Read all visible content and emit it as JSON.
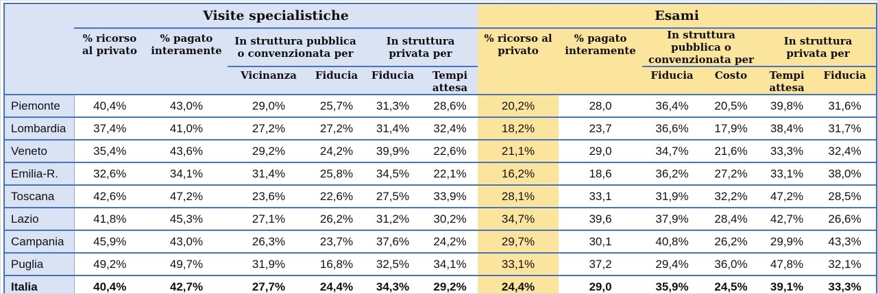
{
  "table": {
    "corner_label": "",
    "sections": [
      {
        "title": "Visite specialistiche",
        "groups": [
          {
            "label": "% ricorso al privato",
            "sub": []
          },
          {
            "label": "% pagato interamente",
            "sub": []
          },
          {
            "label": "In struttura pubblica o convenzionata per",
            "sub": [
              "Vicinanza",
              "Fiducia"
            ]
          },
          {
            "label": "In struttura privata per",
            "sub": [
              "Fiducia",
              "Tempi attesa"
            ]
          }
        ]
      },
      {
        "title": "Esami",
        "groups": [
          {
            "label": "% ricorso al privato",
            "sub": []
          },
          {
            "label": "% pagato interamente",
            "sub": []
          },
          {
            "label": "In struttura pubblica o convenzionata per",
            "sub": [
              "Fiducia",
              "Costo"
            ]
          },
          {
            "label": "In struttura privata per",
            "sub": [
              "Tempi attesa",
              "Fiducia"
            ]
          }
        ]
      }
    ],
    "rows": [
      {
        "region": "Piemonte",
        "bold": false,
        "visite": [
          "40,4%",
          "43,0%",
          "29,0%",
          "25,7%",
          "31,3%",
          "28,6%"
        ],
        "esami": [
          "20,2%",
          "28,0",
          "36,4%",
          "20,5%",
          "39,8%",
          "31,6%"
        ]
      },
      {
        "region": "Lombardia",
        "bold": false,
        "visite": [
          "37,4%",
          "41,0%",
          "27,2%",
          "27,2%",
          "31,4%",
          "32,4%"
        ],
        "esami": [
          "18,2%",
          "23,7",
          "36,6%",
          "17,9%",
          "38,4%",
          "31,7%"
        ]
      },
      {
        "region": "Veneto",
        "bold": false,
        "visite": [
          "35,4%",
          "43,6%",
          "29,2%",
          "24,2%",
          "39,9%",
          "22,6%"
        ],
        "esami": [
          "21,1%",
          "29,0",
          "34,7%",
          "21,6%",
          "33,3%",
          "32,4%"
        ]
      },
      {
        "region": "Emilia-R.",
        "bold": false,
        "visite": [
          "32,6%",
          "34,1%",
          "31,4%",
          "25,8%",
          "34,5%",
          "22,1%"
        ],
        "esami": [
          "16,2%",
          "18,6",
          "36,2%",
          "27,2%",
          "33,1%",
          "38,0%"
        ]
      },
      {
        "region": "Toscana",
        "bold": false,
        "visite": [
          "42,6%",
          "47,2%",
          "23,6%",
          "22,6%",
          "27,5%",
          "33,9%"
        ],
        "esami": [
          "28,1%",
          "33,1",
          "31,9%",
          "32,2%",
          "47,2%",
          "28,5%"
        ]
      },
      {
        "region": "Lazio",
        "bold": false,
        "visite": [
          "41,8%",
          "45,3%",
          "27,1%",
          "26,2%",
          "31,2%",
          "30,2%"
        ],
        "esami": [
          "34,7%",
          "39,6",
          "37,9%",
          "28,4%",
          "42,7%",
          "26,6%"
        ]
      },
      {
        "region": "Campania",
        "bold": false,
        "visite": [
          "45,9%",
          "43,0%",
          "26,3%",
          "23,7%",
          "37,6%",
          "24,2%"
        ],
        "esami": [
          "29,7%",
          "30,1",
          "40,8%",
          "26,2%",
          "29,9%",
          "43,3%"
        ]
      },
      {
        "region": "Puglia",
        "bold": false,
        "visite": [
          "49,2%",
          "49,7%",
          "31,9%",
          "16,8%",
          "32,5%",
          "34,1%"
        ],
        "esami": [
          "33,1%",
          "37,2",
          "29,4%",
          "36,0%",
          "47,8%",
          "32,1%"
        ]
      },
      {
        "region": "Italia",
        "bold": true,
        "visite": [
          "40,4%",
          "42,7%",
          "27,7%",
          "24,4%",
          "34,3%",
          "29,2%"
        ],
        "esami": [
          "24,4%",
          "29,0",
          "35,9%",
          "24,5%",
          "39,1%",
          "33,3%"
        ]
      }
    ],
    "colors": {
      "border_blue": "#4472C4",
      "header_lavender": "#DAE3F3",
      "header_gold": "#FBE49B",
      "highlight_gold": "#FBE49B",
      "region_divider": "#8EA9DB",
      "text": "#101010"
    }
  }
}
